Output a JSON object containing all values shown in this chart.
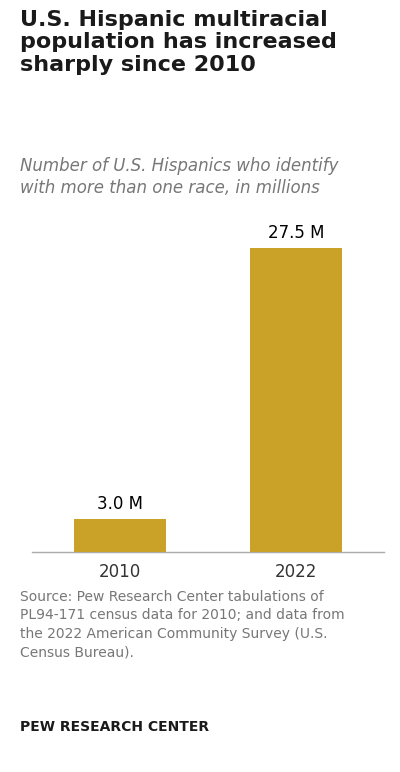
{
  "title": "U.S. Hispanic multiracial\npopulation has increased\nsharply since 2010",
  "subtitle": "Number of U.S. Hispanics who identify\nwith more than one race, in millions",
  "categories": [
    "2010",
    "2022"
  ],
  "values": [
    3.0,
    27.5
  ],
  "labels": [
    "3.0 M",
    "27.5 M"
  ],
  "bar_color": "#C9A227",
  "background_color": "#ffffff",
  "source_text": "Source: Pew Research Center tabulations of\nPL94-171 census data for 2010; and data from\nthe 2022 American Community Survey (U.S.\nCensus Bureau).",
  "brand_text": "PEW RESEARCH CENTER",
  "ylim": [
    0,
    30
  ],
  "title_fontsize": 16,
  "subtitle_fontsize": 12,
  "label_fontsize": 12,
  "tick_fontsize": 12,
  "source_fontsize": 10,
  "brand_fontsize": 10
}
